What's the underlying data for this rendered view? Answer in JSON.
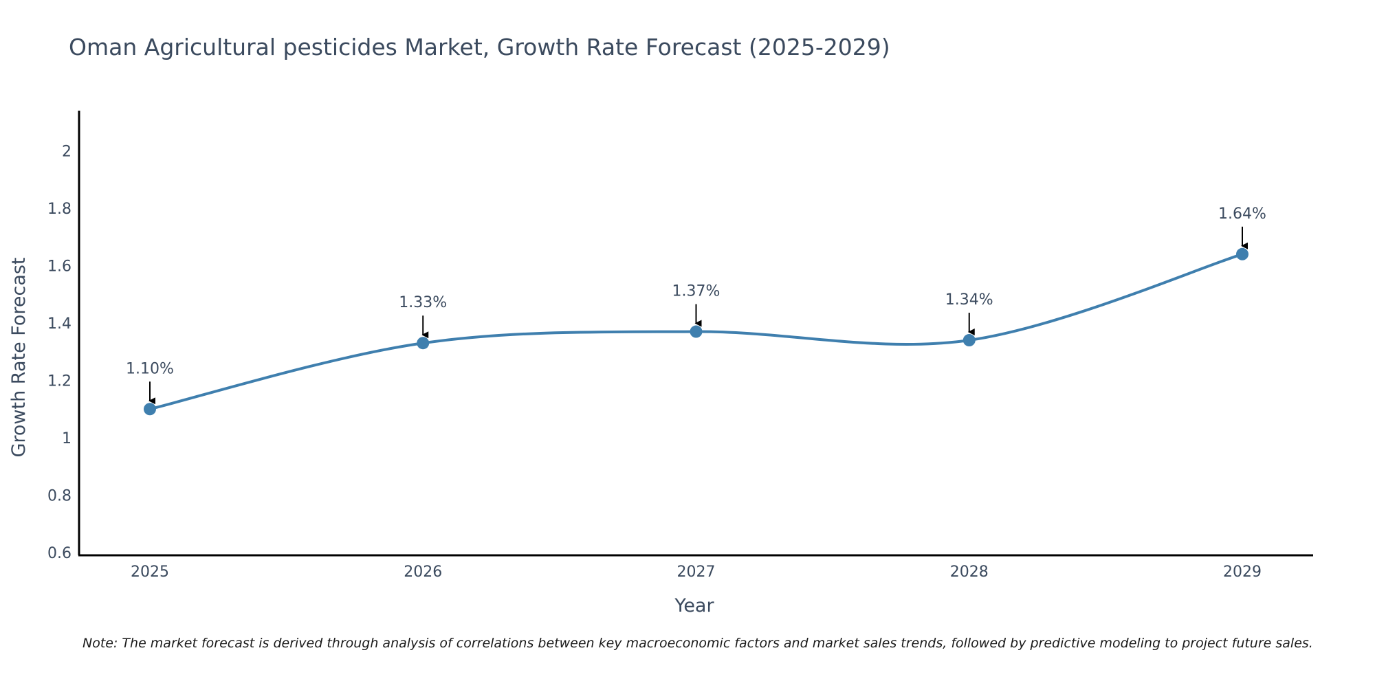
{
  "chart_data": {
    "type": "line",
    "title": "Oman Agricultural pesticides Market, Growth Rate Forecast (2025-2029)",
    "xlabel": "Year",
    "ylabel": "Growth Rate Forecast",
    "categories": [
      "2025",
      "2026",
      "2027",
      "2028",
      "2029"
    ],
    "series": [
      {
        "name": "Growth Rate Forecast",
        "values": [
          1.1,
          1.33,
          1.37,
          1.34,
          1.64
        ],
        "labels": [
          "1.10%",
          "1.33%",
          "1.37%",
          "1.34%",
          "1.64%"
        ],
        "color": "#3f7fae"
      }
    ],
    "ylim": [
      0.6,
      2.14
    ],
    "yticks": [
      0.6,
      0.8,
      1,
      1.2,
      1.4,
      1.6,
      1.8,
      2
    ],
    "ytick_labels": [
      "0.6",
      "0.8",
      "1",
      "1.2",
      "1.4",
      "1.6",
      "1.8",
      "2"
    ],
    "grid": false,
    "note": "Note: The market forecast is derived through analysis of correlations between key macroeconomic factors and market sales trends, followed by predictive modeling to project future sales."
  },
  "colors": {
    "text": "#3b4a5e",
    "axis": "#000000",
    "line": "#3f7fae",
    "arrow": "#000000"
  }
}
